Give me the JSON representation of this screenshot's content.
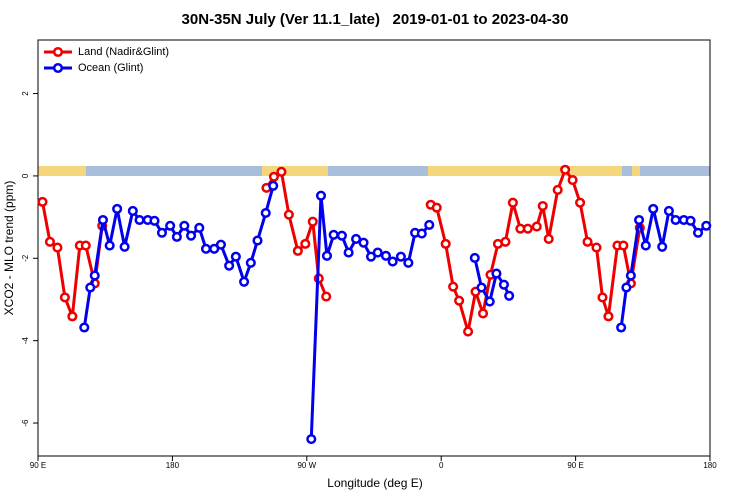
{
  "chart_data": {
    "type": "line",
    "title": "30N-35N July (Ver 11.1_late)   2019-01-01 to 2023-04-30",
    "x_label": "Longitude (deg E)",
    "y_label": "XCO2 - MLO trend (ppm)",
    "xlim": [
      90,
      540
    ],
    "xticks": [
      {
        "value": 90,
        "label": "90 E"
      },
      {
        "value": 180,
        "label": "180"
      },
      {
        "value": 270,
        "label": "90 W"
      },
      {
        "value": 360,
        "label": "0"
      },
      {
        "value": 450,
        "label": "90 E"
      },
      {
        "value": 540,
        "label": "180"
      }
    ],
    "ylim": [
      -6.8,
      3.3
    ],
    "yticks": [
      -6,
      -4,
      -2,
      0,
      2
    ],
    "legend": "top-left",
    "series": [
      {
        "name": "Land (Nadir&Glint)",
        "color": "#ee0000",
        "x": [
          93,
          98,
          103,
          108,
          113,
          118,
          122,
          128,
          133,
          null,
          243,
          248,
          253,
          258,
          264,
          269,
          274,
          278,
          283,
          null,
          353,
          357,
          363,
          368,
          372,
          378,
          383,
          388,
          393,
          398,
          403,
          408,
          413,
          418,
          424,
          428,
          432,
          438,
          443,
          448,
          453,
          458,
          464,
          468,
          472,
          478,
          482,
          487,
          493
        ],
        "values": [
          -0.63,
          -1.6,
          -1.74,
          -2.95,
          -3.41,
          -1.69,
          -1.69,
          -2.61,
          -1.21,
          null,
          -0.29,
          -0.02,
          0.1,
          -0.94,
          -1.82,
          -1.65,
          -1.11,
          -2.49,
          -2.93,
          null,
          -0.7,
          -0.77,
          -1.65,
          -2.69,
          -3.03,
          -3.78,
          -2.81,
          -3.34,
          -2.4,
          -1.65,
          -1.6,
          -0.65,
          -1.28,
          -1.28,
          -1.23,
          -0.73,
          -1.53,
          -0.34,
          0.15,
          -0.1,
          -0.65,
          -1.6,
          -1.74,
          -2.95,
          -3.41,
          -1.69,
          -1.69,
          -2.61,
          -1.26
        ]
      },
      {
        "name": "Ocean (Glint)",
        "color": "#0000ee",
        "x": [
          121,
          125,
          128,
          133.5,
          138,
          143,
          148,
          153.5,
          158,
          163.5,
          168,
          173,
          178.5,
          183,
          188,
          192.5,
          198,
          202.5,
          208,
          212.5,
          218,
          222.5,
          228,
          232.5,
          237,
          242.5,
          247.5,
          null,
          273,
          279.5,
          283.5,
          288,
          293.5,
          298,
          303,
          308,
          313,
          317.5,
          323,
          327.5,
          333,
          338,
          342.5,
          347,
          352,
          null,
          382.5,
          387,
          392.5,
          397,
          402,
          405.5,
          null,
          480.5,
          484,
          487,
          492.5,
          497,
          502,
          508,
          512.5,
          517,
          522.5,
          527,
          532,
          537.5
        ],
        "values": [
          -3.68,
          -2.71,
          -2.42,
          -1.07,
          -1.69,
          -0.8,
          -1.72,
          -0.85,
          -1.07,
          -1.07,
          -1.09,
          -1.38,
          -1.21,
          -1.48,
          -1.21,
          -1.45,
          -1.26,
          -1.77,
          -1.77,
          -1.67,
          -2.18,
          -1.96,
          -2.57,
          -2.11,
          -1.57,
          -0.9,
          -0.24,
          null,
          -6.39,
          -0.48,
          -1.94,
          -1.43,
          -1.45,
          -1.86,
          -1.53,
          -1.62,
          -1.96,
          -1.86,
          -1.94,
          -2.08,
          -1.96,
          -2.11,
          -1.38,
          -1.4,
          -1.19,
          null,
          -1.99,
          -2.71,
          -3.05,
          -2.37,
          -2.64,
          -2.91,
          null,
          -3.68,
          -2.71,
          -2.42,
          -1.07,
          -1.69,
          -0.8,
          -1.72,
          -0.85,
          -1.07,
          -1.07,
          -1.09,
          -1.38,
          -1.21
        ]
      }
    ]
  }
}
